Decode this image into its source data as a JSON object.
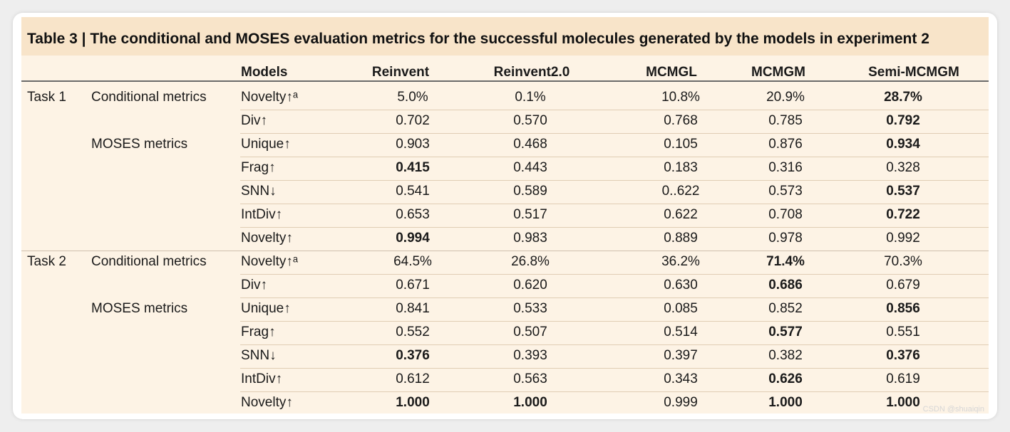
{
  "caption": {
    "label": "Table 3",
    "separator": "|",
    "text": "The conditional and MOSES evaluation metrics for the successful molecules generated by the models in experiment 2"
  },
  "columns": [
    "Models",
    "Reinvent",
    "Reinvent2.0",
    "MCMGL",
    "MCMGM",
    "Semi-MCMGM"
  ],
  "rows": [
    {
      "task": "Task 1",
      "group": "Conditional metrics",
      "metric": "Novelty↑ᵃ",
      "values": [
        "5.0%",
        "0.1%",
        "10.8%",
        "20.9%",
        "28.7%"
      ],
      "bold": [
        false,
        false,
        false,
        false,
        true
      ]
    },
    {
      "task": "",
      "group": "",
      "metric": "Div↑",
      "values": [
        "0.702",
        "0.570",
        "0.768",
        "0.785",
        "0.792"
      ],
      "bold": [
        false,
        false,
        false,
        false,
        true
      ]
    },
    {
      "task": "",
      "group": "MOSES metrics",
      "metric": "Unique↑",
      "values": [
        "0.903",
        "0.468",
        "0.105",
        "0.876",
        "0.934"
      ],
      "bold": [
        false,
        false,
        false,
        false,
        true
      ]
    },
    {
      "task": "",
      "group": "",
      "metric": "Frag↑",
      "values": [
        "0.415",
        "0.443",
        "0.183",
        "0.316",
        "0.328"
      ],
      "bold": [
        true,
        false,
        false,
        false,
        false
      ]
    },
    {
      "task": "",
      "group": "",
      "metric": "SNN↓",
      "values": [
        "0.541",
        "0.589",
        "0..622",
        "0.573",
        "0.537"
      ],
      "bold": [
        false,
        false,
        false,
        false,
        true
      ]
    },
    {
      "task": "",
      "group": "",
      "metric": "IntDiv↑",
      "values": [
        "0.653",
        "0.517",
        "0.622",
        "0.708",
        "0.722"
      ],
      "bold": [
        false,
        false,
        false,
        false,
        true
      ]
    },
    {
      "task": "",
      "group": "",
      "metric": "Novelty↑",
      "values": [
        "0.994",
        "0.983",
        "0.889",
        "0.978",
        "0.992"
      ],
      "bold": [
        true,
        false,
        false,
        false,
        false
      ]
    },
    {
      "task": "Task 2",
      "group": "Conditional metrics",
      "metric": "Novelty↑ᵃ",
      "values": [
        "64.5%",
        "26.8%",
        "36.2%",
        "71.4%",
        "70.3%"
      ],
      "bold": [
        false,
        false,
        false,
        true,
        false
      ]
    },
    {
      "task": "",
      "group": "",
      "metric": "Div↑",
      "values": [
        "0.671",
        "0.620",
        "0.630",
        "0.686",
        "0.679"
      ],
      "bold": [
        false,
        false,
        false,
        true,
        false
      ]
    },
    {
      "task": "",
      "group": "MOSES metrics",
      "metric": "Unique↑",
      "values": [
        "0.841",
        "0.533",
        "0.085",
        "0.852",
        "0.856"
      ],
      "bold": [
        false,
        false,
        false,
        false,
        true
      ]
    },
    {
      "task": "",
      "group": "",
      "metric": "Frag↑",
      "values": [
        "0.552",
        "0.507",
        "0.514",
        "0.577",
        "0.551"
      ],
      "bold": [
        false,
        false,
        false,
        true,
        false
      ]
    },
    {
      "task": "",
      "group": "",
      "metric": "SNN↓",
      "values": [
        "0.376",
        "0.393",
        "0.397",
        "0.382",
        "0.376"
      ],
      "bold": [
        true,
        false,
        false,
        false,
        true
      ]
    },
    {
      "task": "",
      "group": "",
      "metric": "IntDiv↑",
      "values": [
        "0.612",
        "0.563",
        "0.343",
        "0.626",
        "0.619"
      ],
      "bold": [
        false,
        false,
        false,
        true,
        false
      ]
    },
    {
      "task": "",
      "group": "",
      "metric": "Novelty↑",
      "values": [
        "1.000",
        "1.000",
        "0.999",
        "1.000",
        "1.000"
      ],
      "bold": [
        true,
        true,
        false,
        true,
        true
      ]
    }
  ],
  "watermark": "CSDN @shuaiqin"
}
